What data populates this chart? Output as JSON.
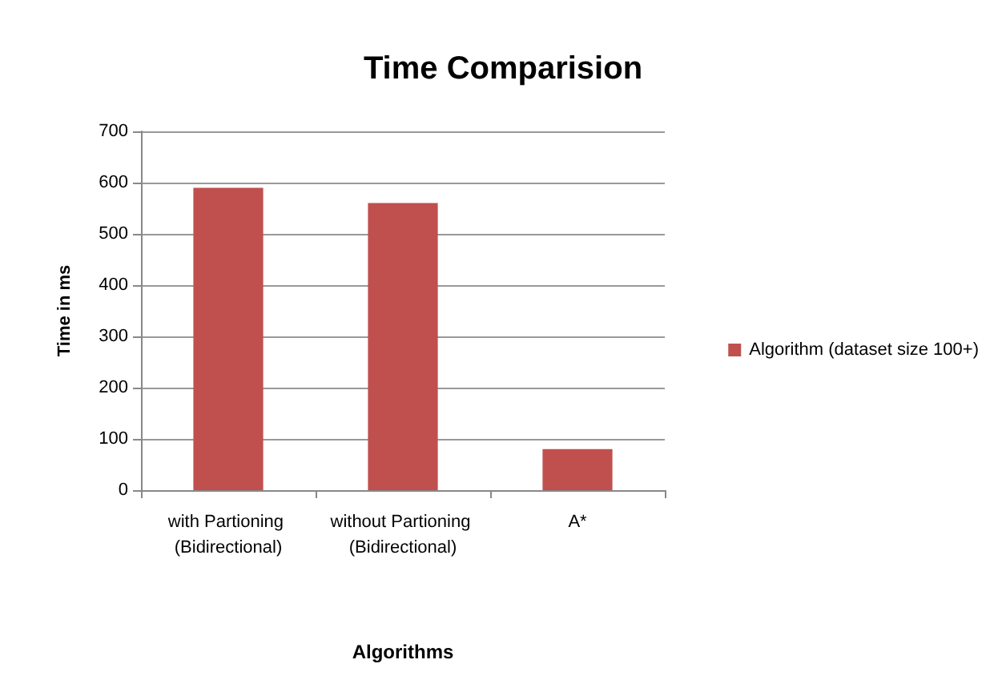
{
  "chart_data": {
    "type": "bar",
    "title": "Time Comparision",
    "xlabel": "Algorithms",
    "ylabel": "Time in ms",
    "categories": [
      "with Partioning (Bidirectional)",
      "without Partioning (Bidirectional)",
      "A*"
    ],
    "series": [
      {
        "name": "Algorithm (dataset size 100+)",
        "color": "#c0504d",
        "values": [
          590,
          560,
          80
        ]
      }
    ],
    "ylim": [
      0,
      700
    ],
    "yticks": [
      0,
      100,
      200,
      300,
      400,
      500,
      600,
      700
    ],
    "grid": "y",
    "legend": "right"
  }
}
